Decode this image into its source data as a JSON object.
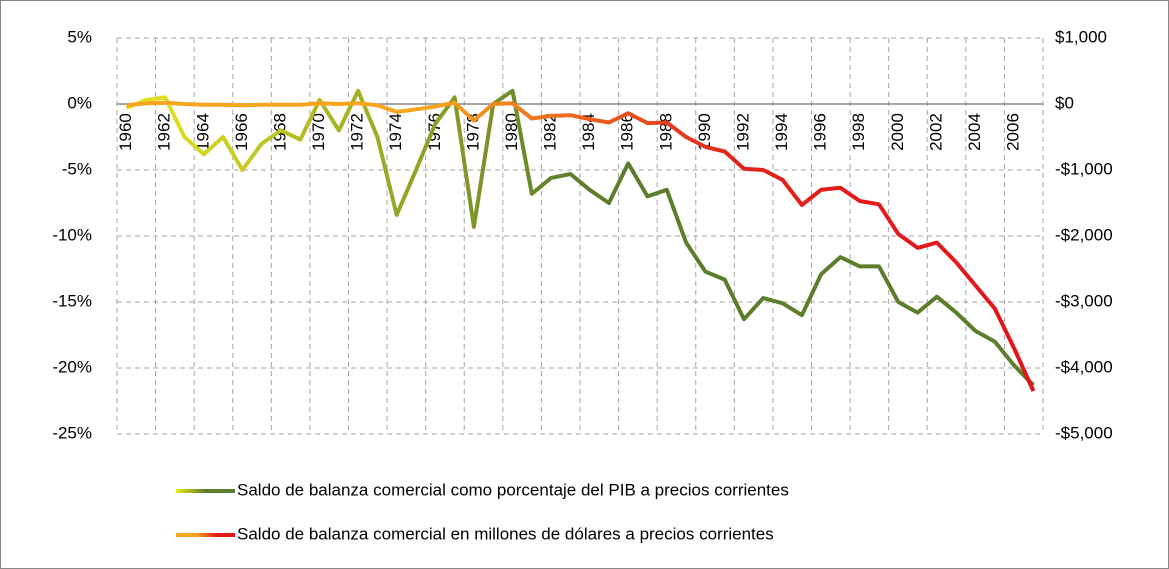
{
  "chart_data": {
    "type": "line",
    "categories": [
      "1960",
      null,
      "1962",
      null,
      "1964",
      null,
      "1966",
      null,
      "1968",
      null,
      "1970",
      null,
      "1972",
      null,
      "1974",
      null,
      "1976",
      null,
      "1978",
      null,
      "1980",
      null,
      "1982",
      null,
      "1984",
      null,
      "1986",
      null,
      "1988",
      null,
      "1990",
      null,
      "1992",
      null,
      "1994",
      null,
      "1996",
      null,
      "1998",
      null,
      "2000",
      null,
      "2002",
      null,
      "2004",
      null,
      "2006",
      null
    ],
    "series": [
      {
        "name": "Saldo de balanza comercial como porcentaje del PIB a precios corrientes",
        "colors": [
          "#eee81c",
          "#5b7d2c",
          "#5b7d2c"
        ],
        "values": [
          -0.3,
          0.3,
          0.5,
          -2.5,
          -3.8,
          -2.5,
          -5,
          -3,
          -2,
          -2.7,
          0.3,
          -2,
          1,
          -2.5,
          -8.4,
          -5,
          -1.5,
          0.5,
          -9.3,
          0,
          1,
          -6.8,
          -5.6,
          -5.3,
          -6.5,
          -7.5,
          -4.5,
          -7,
          -6.5,
          -10.5,
          -12.7,
          -13.3,
          -16.3,
          -14.7,
          -15.1,
          -16,
          -12.9,
          -11.6,
          -12.3,
          -12.3,
          -15,
          -15.8,
          -14.6,
          -15.8,
          -17.2,
          -18,
          -19.8,
          -21.3
        ]
      },
      {
        "name": "Saldo de balanza comercial en millones de dólares a precios corrientes",
        "axis": "y2",
        "colors": [
          "#f7a51e",
          "#f7a51e",
          "#e3231a",
          "#e3131a"
        ],
        "values": [
          -20,
          10,
          20,
          0,
          -10,
          -10,
          -20,
          -10,
          -10,
          -10,
          10,
          0,
          10,
          -20,
          -120,
          -80,
          -40,
          20,
          -250,
          0,
          10,
          -220,
          -180,
          -170,
          -230,
          -280,
          -140,
          -290,
          -280,
          -500,
          -650,
          -720,
          -980,
          -1000,
          -1150,
          -1530,
          -1300,
          -1270,
          -1470,
          -1520,
          -1970,
          -2180,
          -2100,
          -2400,
          -2750,
          -3100,
          -3700,
          -4350
        ]
      }
    ],
    "ylim": [
      -25,
      5
    ],
    "yticks": [
      {
        "value": -25,
        "label": "-25%"
      },
      {
        "value": -20,
        "label": "-20%"
      },
      {
        "value": -15,
        "label": "-15%"
      },
      {
        "value": -10,
        "label": "-10%"
      },
      {
        "value": -5,
        "label": "-5%"
      },
      {
        "value": 0,
        "label": "0%"
      },
      {
        "value": 5,
        "label": "5%"
      }
    ],
    "y2lim": [
      -5000,
      1000
    ],
    "y2ticks": [
      {
        "value": -5000,
        "label": "-$5,000"
      },
      {
        "value": -4000,
        "label": "-$4,000"
      },
      {
        "value": -3000,
        "label": "-$3,000"
      },
      {
        "value": -2000,
        "label": "-$2,000"
      },
      {
        "value": -1000,
        "label": "-$1,000"
      },
      {
        "value": 0,
        "label": "$0"
      },
      {
        "value": 1000,
        "label": "$1,000"
      }
    ],
    "grid": true,
    "legend": "bottom"
  }
}
